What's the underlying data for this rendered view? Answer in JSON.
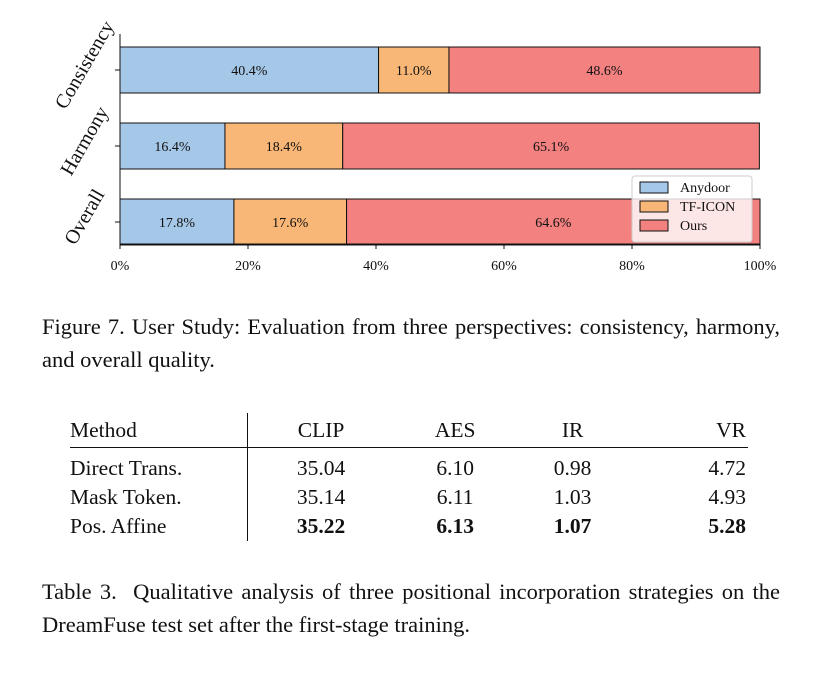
{
  "chart_data": {
    "type": "bar",
    "orientation": "horizontal",
    "stacked": true,
    "categories": [
      "Consistency",
      "Harmony",
      "Overall"
    ],
    "series": [
      {
        "name": "Anydoor",
        "values": [
          40.4,
          16.4,
          17.8
        ],
        "labels": [
          "40.4%",
          "16.4%",
          "17.8%"
        ],
        "color": "#a6c8e8"
      },
      {
        "name": "TF-ICON",
        "values": [
          11.0,
          18.4,
          17.6
        ],
        "labels": [
          "11.0%",
          "18.4%",
          "17.6%"
        ],
        "color": "#f9b777"
      },
      {
        "name": "Ours",
        "values": [
          48.6,
          65.1,
          64.6
        ],
        "labels": [
          "48.6%",
          "65.1%",
          "64.6%"
        ],
        "color": "#f28180"
      }
    ],
    "xlim": [
      0,
      100
    ],
    "x_ticks": [
      "0%",
      "20%",
      "40%",
      "60%",
      "80%",
      "100%"
    ],
    "legend_position": "bottom-right",
    "grid": false
  },
  "figure_caption": "Figure 7. User Study: Evaluation from three perspectives: consistency, harmony, and overall quality.",
  "table": {
    "columns": [
      "Method",
      "CLIP",
      "AES",
      "IR",
      "VR"
    ],
    "rows": [
      {
        "method": "Direct Trans.",
        "clip": "35.04",
        "aes": "6.10",
        "ir": "0.98",
        "vr": "4.72"
      },
      {
        "method": "Mask Token.",
        "clip": "35.14",
        "aes": "6.11",
        "ir": "1.03",
        "vr": "4.93"
      },
      {
        "method": "Pos. Affine",
        "clip": "35.22",
        "aes": "6.13",
        "ir": "1.07",
        "vr": "5.28",
        "bold": true
      }
    ]
  },
  "table_caption": "Table 3.  Qualitative analysis of three positional incorporation strategies on the DreamFuse test set after the first-stage training."
}
